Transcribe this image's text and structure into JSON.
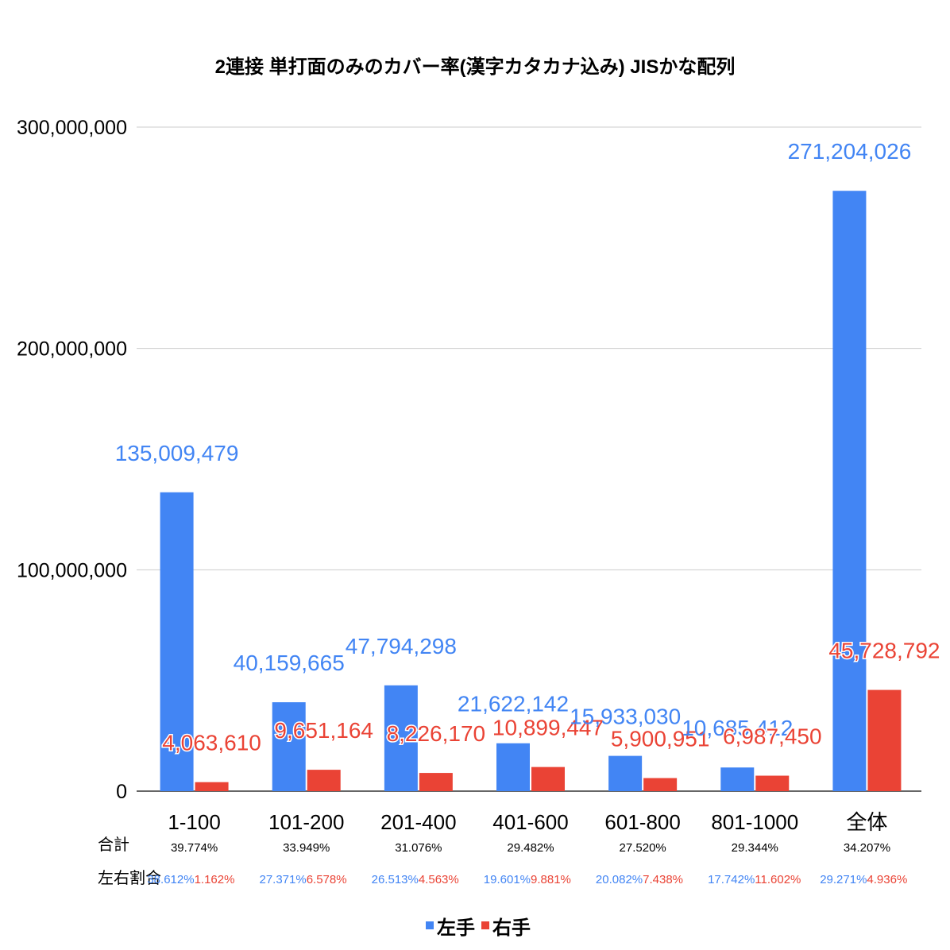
{
  "chart_data": {
    "type": "bar",
    "title": "2連接 単打面のみのカバー率(漢字カタカナ込み) JISかな配列",
    "categories": [
      "1-100",
      "101-200",
      "201-400",
      "401-600",
      "601-800",
      "801-1000",
      "全体"
    ],
    "series": [
      {
        "name": "左手",
        "color": "#4285f4",
        "values": [
          135009479,
          40159665,
          47794298,
          21622142,
          15933030,
          10685412,
          271204026
        ],
        "labels": [
          "135,009,479",
          "40,159,665",
          "47,794,298",
          "21,622,142",
          "15,933,030",
          "10,685,412",
          "271,204,026"
        ]
      },
      {
        "name": "右手",
        "color": "#ea4335",
        "values": [
          4063610,
          9651164,
          8226170,
          10899447,
          5900951,
          6987450,
          45728792
        ],
        "labels": [
          "4,063,610",
          "9,651,164",
          "8,226,170",
          "10,899,447",
          "5,900,951",
          "6,987,450",
          "45,728,792"
        ]
      }
    ],
    "ylim": [
      0,
      300000000
    ],
    "yticks": [
      0,
      100000000,
      200000000,
      300000000
    ],
    "ytick_labels": [
      "0",
      "100,000,000",
      "200,000,000",
      "300,000,000"
    ],
    "grid": true,
    "legend": "bottom-center",
    "table": {
      "total_label": "合計",
      "ratio_label": "左右割合",
      "totals": [
        "39.774%",
        "33.949%",
        "31.076%",
        "29.482%",
        "27.520%",
        "29.344%",
        "34.207%"
      ],
      "left_ratios": [
        "38.612%",
        "27.371%",
        "26.513%",
        "19.601%",
        "20.082%",
        "17.742%",
        "29.271%"
      ],
      "right_ratios": [
        "1.162%",
        "6.578%",
        "4.563%",
        "9.881%",
        "7.438%",
        "11.602%",
        "4.936%"
      ]
    }
  }
}
